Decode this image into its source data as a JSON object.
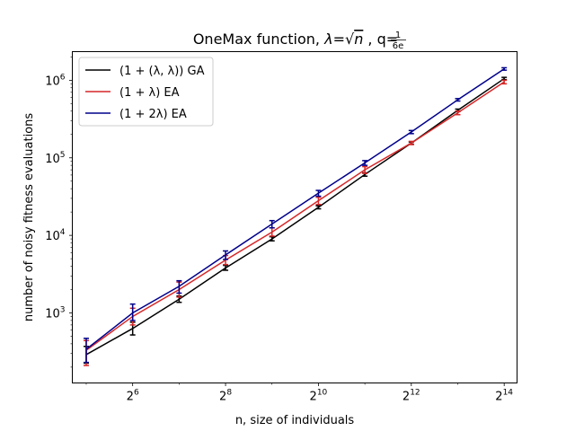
{
  "chart_data": {
    "type": "line",
    "title": "OneMax function, λ=√n , q=1/6e",
    "title_parts": {
      "prefix": "OneMax function, ",
      "lambda": "λ",
      "eq": "=",
      "sqrt": "√",
      "n": "n",
      "mid": " , q=",
      "frac_num": "1",
      "frac_den": "6e"
    },
    "xlabel": "n, size of individuals",
    "ylabel": "number of noisy fitness evaluations",
    "x_scale": "log2",
    "y_scale": "log10",
    "xlim": [
      26,
      19853
    ],
    "ylim": [
      125,
      2340000
    ],
    "x": [
      32,
      64,
      128,
      256,
      512,
      1024,
      2048,
      4096,
      8192,
      16384
    ],
    "x_ticks": [
      {
        "value": 64,
        "base": "2",
        "exp": "6"
      },
      {
        "value": 256,
        "base": "2",
        "exp": "8"
      },
      {
        "value": 1024,
        "base": "2",
        "exp": "10"
      },
      {
        "value": 4096,
        "base": "2",
        "exp": "12"
      },
      {
        "value": 16384,
        "base": "2",
        "exp": "14"
      }
    ],
    "y_ticks": [
      {
        "value": 1000,
        "base": "10",
        "exp": "3"
      },
      {
        "value": 10000,
        "base": "10",
        "exp": "4"
      },
      {
        "value": 100000,
        "base": "10",
        "exp": "5"
      },
      {
        "value": 1000000,
        "base": "10",
        "exp": "6"
      }
    ],
    "grid": false,
    "legend_position": "top-left",
    "series": [
      {
        "name": "(1 + (λ, λ)) GA",
        "color": "#000000",
        "values": [
          290,
          630,
          1500,
          3800,
          9000,
          23000,
          61000,
          155000,
          410000,
          1050000
        ],
        "err_low": [
          225,
          520,
          1370,
          3550,
          8500,
          22000,
          58000,
          150000,
          395000,
          1020000
        ],
        "err_high": [
          370,
          760,
          1650,
          4100,
          9600,
          24000,
          64000,
          160000,
          425000,
          1090000
        ]
      },
      {
        "name": "(1 + λ) EA",
        "color": "#d62728",
        "values": [
          330,
          900,
          2000,
          4800,
          11000,
          28000,
          70000,
          155000,
          380000,
          950000
        ],
        "err_low": [
          210,
          700,
          1600,
          4200,
          9800,
          25000,
          63000,
          148000,
          360000,
          900000
        ],
        "err_high": [
          440,
          1150,
          2500,
          5500,
          12500,
          31000,
          77000,
          163000,
          400000,
          1000000
        ]
      },
      {
        "name": "(1 + 2λ) EA",
        "color": "#00008b",
        "values": [
          340,
          1000,
          2200,
          5600,
          14000,
          35000,
          86000,
          215000,
          560000,
          1400000
        ],
        "err_low": [
          230,
          800,
          1800,
          4900,
          12500,
          32000,
          80000,
          205000,
          540000,
          1350000
        ],
        "err_high": [
          470,
          1300,
          2600,
          6300,
          15500,
          38000,
          92000,
          225000,
          580000,
          1450000
        ]
      }
    ]
  }
}
